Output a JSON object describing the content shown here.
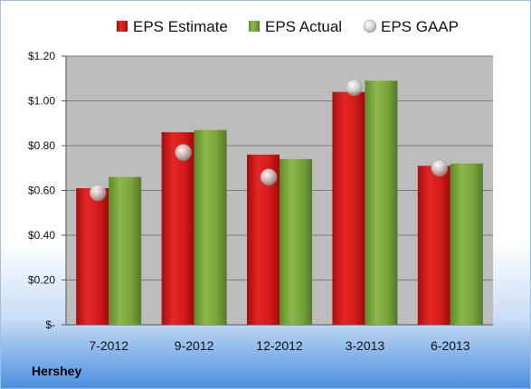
{
  "chart_data": {
    "type": "bar",
    "categories": [
      "7-2012",
      "9-2012",
      "12-2012",
      "3-2013",
      "6-2013"
    ],
    "series": [
      {
        "name": "EPS Estimate",
        "kind": "bar",
        "color": "#d91c1c",
        "values": [
          0.61,
          0.86,
          0.76,
          1.04,
          0.71
        ]
      },
      {
        "name": "EPS Actual",
        "kind": "bar",
        "color": "#7fa63c",
        "values": [
          0.66,
          0.87,
          0.74,
          1.09,
          0.72
        ]
      },
      {
        "name": "EPS GAAP",
        "kind": "marker",
        "color": "#c8c8c8",
        "values": [
          0.59,
          0.77,
          0.66,
          1.06,
          0.7
        ]
      }
    ],
    "y_ticks": [
      {
        "value": 0,
        "label": "$-"
      },
      {
        "value": 0.2,
        "label": "$0.20"
      },
      {
        "value": 0.4,
        "label": "$0.40"
      },
      {
        "value": 0.6,
        "label": "$0.60"
      },
      {
        "value": 0.8,
        "label": "$0.80"
      },
      {
        "value": 1.0,
        "label": "$1.00"
      },
      {
        "value": 1.2,
        "label": "$1.20"
      }
    ],
    "ylim": [
      0,
      1.2
    ],
    "grid": true,
    "legend_position": "top",
    "company": "Hershey",
    "colors": {
      "plot_background": "#bdbdbd",
      "page_gradient_top": "#ffffff",
      "page_gradient_bottom": "#4a8fe0"
    }
  }
}
